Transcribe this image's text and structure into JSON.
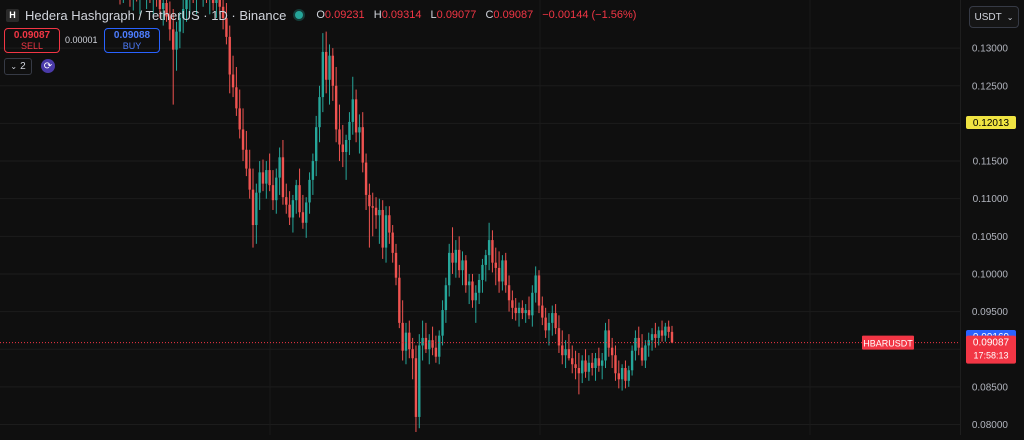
{
  "header": {
    "logo_letter": "H",
    "title": "Hedera Hashgraph / TetherUS · 1D · Binance",
    "ohlc": [
      {
        "k": "O",
        "v": "0.09231"
      },
      {
        "k": "H",
        "v": "0.09314"
      },
      {
        "k": "L",
        "v": "0.09077"
      },
      {
        "k": "C",
        "v": "0.09087"
      },
      {
        "k": "",
        "v": "−0.00144 (−1.56%)"
      }
    ]
  },
  "trade": {
    "sell_price": "0.09087",
    "sell_label": "SELL",
    "spread": "0.00001",
    "buy_price": "0.09088",
    "buy_label": "BUY"
  },
  "indicators": {
    "toggle_label": "2"
  },
  "currency_selector": "USDT",
  "colors": {
    "up": "#26a69a",
    "down": "#ef5350",
    "sell": "#f23645",
    "buy": "#2962ff",
    "highlight": "#f0e442"
  },
  "chart_data": {
    "type": "candlestick",
    "symbol_label": "HBARUSDT",
    "ylim": [
      0.0786,
      0.1364
    ],
    "yticks": [
      "0.13000",
      "0.12500",
      "0.12000",
      "0.11500",
      "0.11000",
      "0.10500",
      "0.10000",
      "0.09500",
      "0.09000",
      "0.08500",
      "0.08000"
    ],
    "markers": [
      {
        "label": "0.12013",
        "value": 0.12013,
        "color": "#f0e442",
        "text_color": "#000000"
      },
      {
        "label": "0.09169",
        "value": 0.09169,
        "color": "#2962ff",
        "text_color": "#ffffff"
      },
      {
        "label": "0.09087",
        "value": 0.09087,
        "color": "#f23645",
        "text_color": "#ffffff"
      }
    ],
    "countdown": "17:58:13",
    "last_price": 0.09087,
    "candles": [
      {
        "o": 0.139,
        "h": 0.1415,
        "l": 0.1358,
        "c": 0.1378
      },
      {
        "o": 0.1378,
        "h": 0.1402,
        "l": 0.136,
        "c": 0.1392
      },
      {
        "o": 0.1392,
        "h": 0.141,
        "l": 0.137,
        "c": 0.138
      },
      {
        "o": 0.138,
        "h": 0.14,
        "l": 0.1355,
        "c": 0.1368
      },
      {
        "o": 0.1368,
        "h": 0.1395,
        "l": 0.135,
        "c": 0.1385
      },
      {
        "o": 0.1385,
        "h": 0.1408,
        "l": 0.1362,
        "c": 0.1372
      },
      {
        "o": 0.1372,
        "h": 0.1398,
        "l": 0.1345,
        "c": 0.139
      },
      {
        "o": 0.139,
        "h": 0.1412,
        "l": 0.1368,
        "c": 0.1376
      },
      {
        "o": 0.1376,
        "h": 0.14,
        "l": 0.1352,
        "c": 0.1388
      },
      {
        "o": 0.1388,
        "h": 0.1405,
        "l": 0.136,
        "c": 0.137
      },
      {
        "o": 0.137,
        "h": 0.1392,
        "l": 0.134,
        "c": 0.1385
      },
      {
        "o": 0.1385,
        "h": 0.1408,
        "l": 0.1355,
        "c": 0.1365
      },
      {
        "o": 0.1365,
        "h": 0.138,
        "l": 0.134,
        "c": 0.1352
      },
      {
        "o": 0.1352,
        "h": 0.1375,
        "l": 0.133,
        "c": 0.136
      },
      {
        "o": 0.136,
        "h": 0.1385,
        "l": 0.1335,
        "c": 0.1342
      },
      {
        "o": 0.1342,
        "h": 0.1362,
        "l": 0.131,
        "c": 0.1325
      },
      {
        "o": 0.1325,
        "h": 0.1352,
        "l": 0.1225,
        "c": 0.1298
      },
      {
        "o": 0.1298,
        "h": 0.1335,
        "l": 0.127,
        "c": 0.1322
      },
      {
        "o": 0.1322,
        "h": 0.1348,
        "l": 0.13,
        "c": 0.134
      },
      {
        "o": 0.134,
        "h": 0.1365,
        "l": 0.132,
        "c": 0.1352
      },
      {
        "o": 0.1352,
        "h": 0.138,
        "l": 0.1335,
        "c": 0.1368
      },
      {
        "o": 0.1368,
        "h": 0.1395,
        "l": 0.1345,
        "c": 0.1382
      },
      {
        "o": 0.1382,
        "h": 0.1405,
        "l": 0.136,
        "c": 0.1372
      },
      {
        "o": 0.1372,
        "h": 0.14,
        "l": 0.1345,
        "c": 0.139
      },
      {
        "o": 0.139,
        "h": 0.141,
        "l": 0.1365,
        "c": 0.1375
      },
      {
        "o": 0.1375,
        "h": 0.1398,
        "l": 0.1355,
        "c": 0.1385
      },
      {
        "o": 0.1385,
        "h": 0.1408,
        "l": 0.136,
        "c": 0.1368
      },
      {
        "o": 0.1368,
        "h": 0.139,
        "l": 0.1345,
        "c": 0.138
      },
      {
        "o": 0.138,
        "h": 0.14,
        "l": 0.135,
        "c": 0.136
      },
      {
        "o": 0.136,
        "h": 0.1382,
        "l": 0.134,
        "c": 0.1372
      },
      {
        "o": 0.1372,
        "h": 0.139,
        "l": 0.1345,
        "c": 0.1355
      },
      {
        "o": 0.1355,
        "h": 0.1378,
        "l": 0.1325,
        "c": 0.134
      },
      {
        "o": 0.134,
        "h": 0.136,
        "l": 0.1305,
        "c": 0.1315
      },
      {
        "o": 0.1315,
        "h": 0.133,
        "l": 0.124,
        "c": 0.1265
      },
      {
        "o": 0.1265,
        "h": 0.129,
        "l": 0.1235,
        "c": 0.1248
      },
      {
        "o": 0.1248,
        "h": 0.1275,
        "l": 0.121,
        "c": 0.122
      },
      {
        "o": 0.122,
        "h": 0.1245,
        "l": 0.118,
        "c": 0.1192
      },
      {
        "o": 0.1192,
        "h": 0.122,
        "l": 0.115,
        "c": 0.1165
      },
      {
        "o": 0.1165,
        "h": 0.119,
        "l": 0.113,
        "c": 0.114
      },
      {
        "o": 0.114,
        "h": 0.1165,
        "l": 0.11,
        "c": 0.1112
      },
      {
        "o": 0.1112,
        "h": 0.114,
        "l": 0.1035,
        "c": 0.1065
      },
      {
        "o": 0.1065,
        "h": 0.112,
        "l": 0.104,
        "c": 0.1108
      },
      {
        "o": 0.1108,
        "h": 0.115,
        "l": 0.1085,
        "c": 0.1135
      },
      {
        "o": 0.1135,
        "h": 0.1152,
        "l": 0.111,
        "c": 0.112
      },
      {
        "o": 0.112,
        "h": 0.115,
        "l": 0.11,
        "c": 0.1138
      },
      {
        "o": 0.1138,
        "h": 0.116,
        "l": 0.111,
        "c": 0.1118
      },
      {
        "o": 0.1118,
        "h": 0.1138,
        "l": 0.1085,
        "c": 0.1098
      },
      {
        "o": 0.1098,
        "h": 0.114,
        "l": 0.108,
        "c": 0.1128
      },
      {
        "o": 0.1128,
        "h": 0.1168,
        "l": 0.1105,
        "c": 0.1155
      },
      {
        "o": 0.1155,
        "h": 0.1178,
        "l": 0.1092,
        "c": 0.1102
      },
      {
        "o": 0.1102,
        "h": 0.112,
        "l": 0.108,
        "c": 0.1092
      },
      {
        "o": 0.1092,
        "h": 0.111,
        "l": 0.1065,
        "c": 0.1075
      },
      {
        "o": 0.1075,
        "h": 0.1105,
        "l": 0.1055,
        "c": 0.1098
      },
      {
        "o": 0.1098,
        "h": 0.1125,
        "l": 0.108,
        "c": 0.1118
      },
      {
        "o": 0.1118,
        "h": 0.114,
        "l": 0.1075,
        "c": 0.1082
      },
      {
        "o": 0.1082,
        "h": 0.1105,
        "l": 0.106,
        "c": 0.1068
      },
      {
        "o": 0.1068,
        "h": 0.1102,
        "l": 0.1048,
        "c": 0.1095
      },
      {
        "o": 0.1095,
        "h": 0.1135,
        "l": 0.108,
        "c": 0.1125
      },
      {
        "o": 0.1125,
        "h": 0.116,
        "l": 0.1105,
        "c": 0.115
      },
      {
        "o": 0.115,
        "h": 0.121,
        "l": 0.113,
        "c": 0.1195
      },
      {
        "o": 0.1195,
        "h": 0.125,
        "l": 0.1175,
        "c": 0.1235
      },
      {
        "o": 0.1235,
        "h": 0.132,
        "l": 0.1215,
        "c": 0.1295
      },
      {
        "o": 0.1295,
        "h": 0.1322,
        "l": 0.124,
        "c": 0.1258
      },
      {
        "o": 0.1258,
        "h": 0.1305,
        "l": 0.1225,
        "c": 0.129
      },
      {
        "o": 0.129,
        "h": 0.13,
        "l": 0.123,
        "c": 0.125
      },
      {
        "o": 0.125,
        "h": 0.1275,
        "l": 0.1175,
        "c": 0.1192
      },
      {
        "o": 0.1192,
        "h": 0.1225,
        "l": 0.115,
        "c": 0.1172
      },
      {
        "o": 0.1172,
        "h": 0.1198,
        "l": 0.1142,
        "c": 0.1162
      },
      {
        "o": 0.1162,
        "h": 0.1185,
        "l": 0.1125,
        "c": 0.1178
      },
      {
        "o": 0.1178,
        "h": 0.1215,
        "l": 0.1158,
        "c": 0.1202
      },
      {
        "o": 0.1202,
        "h": 0.1262,
        "l": 0.1185,
        "c": 0.1232
      },
      {
        "o": 0.1232,
        "h": 0.1245,
        "l": 0.1175,
        "c": 0.1188
      },
      {
        "o": 0.1188,
        "h": 0.1212,
        "l": 0.116,
        "c": 0.1195
      },
      {
        "o": 0.1195,
        "h": 0.1215,
        "l": 0.1135,
        "c": 0.1148
      },
      {
        "o": 0.1148,
        "h": 0.116,
        "l": 0.1085,
        "c": 0.1105
      },
      {
        "o": 0.1105,
        "h": 0.112,
        "l": 0.1035,
        "c": 0.109
      },
      {
        "o": 0.109,
        "h": 0.1108,
        "l": 0.105,
        "c": 0.1088
      },
      {
        "o": 0.1088,
        "h": 0.1102,
        "l": 0.106,
        "c": 0.1078
      },
      {
        "o": 0.1078,
        "h": 0.11,
        "l": 0.104,
        "c": 0.1085
      },
      {
        "o": 0.1085,
        "h": 0.1098,
        "l": 0.102,
        "c": 0.1035
      },
      {
        "o": 0.1035,
        "h": 0.109,
        "l": 0.1015,
        "c": 0.1078
      },
      {
        "o": 0.1078,
        "h": 0.109,
        "l": 0.104,
        "c": 0.1055
      },
      {
        "o": 0.1055,
        "h": 0.1065,
        "l": 0.1015,
        "c": 0.1028
      },
      {
        "o": 0.1028,
        "h": 0.104,
        "l": 0.0985,
        "c": 0.0995
      },
      {
        "o": 0.0995,
        "h": 0.1012,
        "l": 0.0928,
        "c": 0.0935
      },
      {
        "o": 0.0935,
        "h": 0.0965,
        "l": 0.0885,
        "c": 0.0898
      },
      {
        "o": 0.0898,
        "h": 0.0935,
        "l": 0.088,
        "c": 0.0922
      },
      {
        "o": 0.0922,
        "h": 0.0938,
        "l": 0.0888,
        "c": 0.09
      },
      {
        "o": 0.09,
        "h": 0.0915,
        "l": 0.086,
        "c": 0.0888
      },
      {
        "o": 0.0888,
        "h": 0.0905,
        "l": 0.079,
        "c": 0.081
      },
      {
        "o": 0.081,
        "h": 0.092,
        "l": 0.0795,
        "c": 0.0905
      },
      {
        "o": 0.0905,
        "h": 0.0938,
        "l": 0.0885,
        "c": 0.0915
      },
      {
        "o": 0.0915,
        "h": 0.0935,
        "l": 0.0895,
        "c": 0.09
      },
      {
        "o": 0.09,
        "h": 0.092,
        "l": 0.088,
        "c": 0.0912
      },
      {
        "o": 0.0912,
        "h": 0.093,
        "l": 0.0892,
        "c": 0.0902
      },
      {
        "o": 0.0902,
        "h": 0.0918,
        "l": 0.0882,
        "c": 0.089
      },
      {
        "o": 0.089,
        "h": 0.0925,
        "l": 0.088,
        "c": 0.0918
      },
      {
        "o": 0.0918,
        "h": 0.0965,
        "l": 0.0905,
        "c": 0.0952
      },
      {
        "o": 0.0952,
        "h": 0.0995,
        "l": 0.0935,
        "c": 0.0985
      },
      {
        "o": 0.0985,
        "h": 0.104,
        "l": 0.097,
        "c": 0.1028
      },
      {
        "o": 0.1028,
        "h": 0.1062,
        "l": 0.1,
        "c": 0.1015
      },
      {
        "o": 0.1015,
        "h": 0.1045,
        "l": 0.0995,
        "c": 0.1032
      },
      {
        "o": 0.1032,
        "h": 0.105,
        "l": 0.0995,
        "c": 0.1005
      },
      {
        "o": 0.1005,
        "h": 0.103,
        "l": 0.0985,
        "c": 0.1018
      },
      {
        "o": 0.1018,
        "h": 0.1025,
        "l": 0.0975,
        "c": 0.0985
      },
      {
        "o": 0.0985,
        "h": 0.1,
        "l": 0.096,
        "c": 0.099
      },
      {
        "o": 0.099,
        "h": 0.1,
        "l": 0.0955,
        "c": 0.0965
      },
      {
        "o": 0.0965,
        "h": 0.0985,
        "l": 0.0935,
        "c": 0.0975
      },
      {
        "o": 0.0975,
        "h": 0.1,
        "l": 0.096,
        "c": 0.0992
      },
      {
        "o": 0.0992,
        "h": 0.102,
        "l": 0.0975,
        "c": 0.1012
      },
      {
        "o": 0.1012,
        "h": 0.1032,
        "l": 0.099,
        "c": 0.1025
      },
      {
        "o": 0.1025,
        "h": 0.1068,
        "l": 0.1005,
        "c": 0.1045
      },
      {
        "o": 0.1045,
        "h": 0.1058,
        "l": 0.1002,
        "c": 0.1015
      },
      {
        "o": 0.1015,
        "h": 0.1035,
        "l": 0.0985,
        "c": 0.1008
      },
      {
        "o": 0.1008,
        "h": 0.103,
        "l": 0.0975,
        "c": 0.099
      },
      {
        "o": 0.099,
        "h": 0.1025,
        "l": 0.0978,
        "c": 0.1018
      },
      {
        "o": 0.1018,
        "h": 0.1028,
        "l": 0.0975,
        "c": 0.0985
      },
      {
        "o": 0.0985,
        "h": 0.0998,
        "l": 0.095,
        "c": 0.0965
      },
      {
        "o": 0.0965,
        "h": 0.0978,
        "l": 0.094,
        "c": 0.0955
      },
      {
        "o": 0.0955,
        "h": 0.0968,
        "l": 0.0938,
        "c": 0.0948
      },
      {
        "o": 0.0948,
        "h": 0.0962,
        "l": 0.093,
        "c": 0.0955
      },
      {
        "o": 0.0955,
        "h": 0.0965,
        "l": 0.094,
        "c": 0.0948
      },
      {
        "o": 0.0948,
        "h": 0.096,
        "l": 0.0935,
        "c": 0.0952
      },
      {
        "o": 0.0952,
        "h": 0.097,
        "l": 0.094,
        "c": 0.0945
      },
      {
        "o": 0.0945,
        "h": 0.0985,
        "l": 0.093,
        "c": 0.0975
      },
      {
        "o": 0.0975,
        "h": 0.101,
        "l": 0.0962,
        "c": 0.0998
      },
      {
        "o": 0.0998,
        "h": 0.1005,
        "l": 0.0948,
        "c": 0.0958
      },
      {
        "o": 0.0958,
        "h": 0.097,
        "l": 0.0932,
        "c": 0.0942
      },
      {
        "o": 0.0942,
        "h": 0.0955,
        "l": 0.0915,
        "c": 0.0925
      },
      {
        "o": 0.0925,
        "h": 0.0948,
        "l": 0.0905,
        "c": 0.0935
      },
      {
        "o": 0.0935,
        "h": 0.0958,
        "l": 0.0918,
        "c": 0.0948
      },
      {
        "o": 0.0948,
        "h": 0.096,
        "l": 0.092,
        "c": 0.0928
      },
      {
        "o": 0.0928,
        "h": 0.0945,
        "l": 0.0895,
        "c": 0.0905
      },
      {
        "o": 0.0905,
        "h": 0.0925,
        "l": 0.088,
        "c": 0.0892
      },
      {
        "o": 0.0892,
        "h": 0.0912,
        "l": 0.0875,
        "c": 0.09
      },
      {
        "o": 0.09,
        "h": 0.092,
        "l": 0.0885,
        "c": 0.0888
      },
      {
        "o": 0.0888,
        "h": 0.0905,
        "l": 0.0868,
        "c": 0.088
      },
      {
        "o": 0.088,
        "h": 0.0898,
        "l": 0.086,
        "c": 0.0875
      },
      {
        "o": 0.0875,
        "h": 0.0895,
        "l": 0.084,
        "c": 0.0868
      },
      {
        "o": 0.0868,
        "h": 0.0892,
        "l": 0.0855,
        "c": 0.0885
      },
      {
        "o": 0.0885,
        "h": 0.09,
        "l": 0.0862,
        "c": 0.087
      },
      {
        "o": 0.087,
        "h": 0.0892,
        "l": 0.0858,
        "c": 0.0882
      },
      {
        "o": 0.0882,
        "h": 0.0895,
        "l": 0.0865,
        "c": 0.0875
      },
      {
        "o": 0.0875,
        "h": 0.0895,
        "l": 0.0858,
        "c": 0.0888
      },
      {
        "o": 0.0888,
        "h": 0.0902,
        "l": 0.087,
        "c": 0.0878
      },
      {
        "o": 0.0878,
        "h": 0.0895,
        "l": 0.086,
        "c": 0.0885
      },
      {
        "o": 0.0885,
        "h": 0.0935,
        "l": 0.0875,
        "c": 0.0925
      },
      {
        "o": 0.0925,
        "h": 0.094,
        "l": 0.089,
        "c": 0.0902
      },
      {
        "o": 0.0902,
        "h": 0.0915,
        "l": 0.0875,
        "c": 0.0892
      },
      {
        "o": 0.0892,
        "h": 0.0905,
        "l": 0.0858,
        "c": 0.0868
      },
      {
        "o": 0.0868,
        "h": 0.0885,
        "l": 0.0848,
        "c": 0.086
      },
      {
        "o": 0.086,
        "h": 0.088,
        "l": 0.0845,
        "c": 0.0875
      },
      {
        "o": 0.0875,
        "h": 0.0885,
        "l": 0.0848,
        "c": 0.0858
      },
      {
        "o": 0.0858,
        "h": 0.0878,
        "l": 0.085,
        "c": 0.0872
      },
      {
        "o": 0.0872,
        "h": 0.0905,
        "l": 0.0865,
        "c": 0.0898
      },
      {
        "o": 0.0898,
        "h": 0.0925,
        "l": 0.0885,
        "c": 0.0915
      },
      {
        "o": 0.0915,
        "h": 0.093,
        "l": 0.0892,
        "c": 0.0902
      },
      {
        "o": 0.0902,
        "h": 0.092,
        "l": 0.0878,
        "c": 0.0885
      },
      {
        "o": 0.0885,
        "h": 0.0912,
        "l": 0.0875,
        "c": 0.0905
      },
      {
        "o": 0.0905,
        "h": 0.0922,
        "l": 0.089,
        "c": 0.0912
      },
      {
        "o": 0.0912,
        "h": 0.0928,
        "l": 0.0898,
        "c": 0.092
      },
      {
        "o": 0.092,
        "h": 0.0935,
        "l": 0.0902,
        "c": 0.0915
      },
      {
        "o": 0.0915,
        "h": 0.093,
        "l": 0.0905,
        "c": 0.0925
      },
      {
        "o": 0.0925,
        "h": 0.0938,
        "l": 0.091,
        "c": 0.0918
      },
      {
        "o": 0.0918,
        "h": 0.0935,
        "l": 0.091,
        "c": 0.093
      },
      {
        "o": 0.093,
        "h": 0.0938,
        "l": 0.0915,
        "c": 0.0923
      },
      {
        "o": 0.0923,
        "h": 0.0931,
        "l": 0.0908,
        "c": 0.0909
      }
    ]
  }
}
